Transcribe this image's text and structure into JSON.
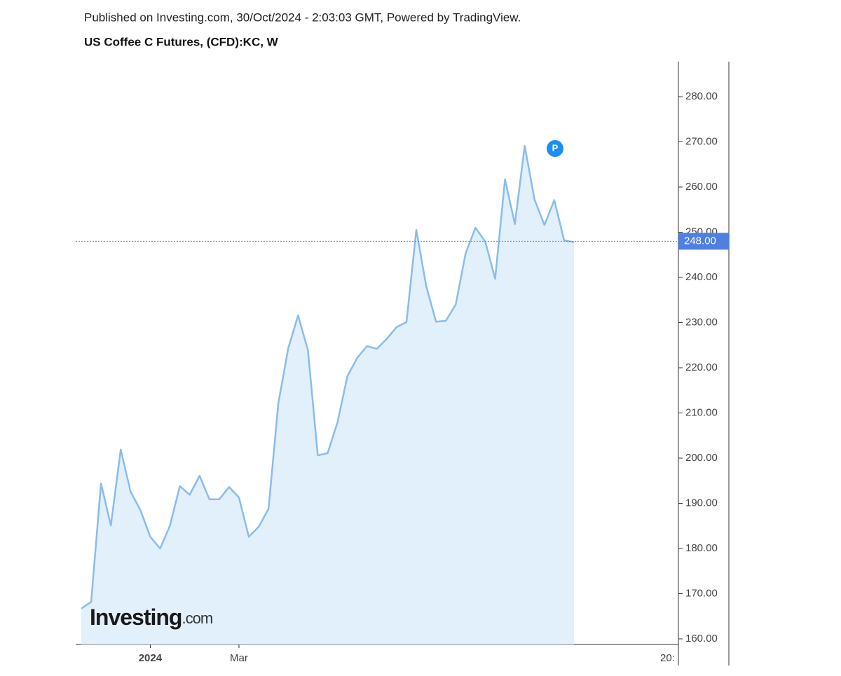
{
  "header": {
    "published": "Published on Investing.com, 30/Oct/2024 - 2:03:03 GMT, Powered by TradingView.",
    "logo_main": "Investing",
    "logo_suffix": ".com",
    "marker": "P"
  },
  "chart_data": {
    "type": "area",
    "title": "US Coffee C Futures, (CFD):KC, W",
    "categories": [
      null,
      null,
      null,
      null,
      null,
      null,
      null,
      "2024",
      null,
      null,
      null,
      null,
      null,
      null,
      null,
      null,
      "Mar",
      null,
      null,
      null,
      null,
      null,
      null,
      null,
      null,
      null,
      null,
      null,
      null,
      null,
      null,
      null,
      null,
      null,
      null,
      null,
      null,
      null,
      null,
      null,
      null,
      null,
      null,
      null,
      null,
      null,
      null,
      null,
      null,
      null,
      null
    ],
    "axis_end_label": "20:",
    "series": [
      {
        "name": "KC",
        "color": "#8bbcec",
        "fill": "#e1f0fa",
        "values": [
          166.7,
          168.2,
          194.4,
          185.1,
          201.9,
          192.6,
          188.5,
          182.6,
          180.0,
          185.1,
          193.8,
          191.9,
          196.1,
          190.9,
          190.9,
          193.6,
          191.3,
          182.6,
          184.8,
          188.8,
          212.2,
          224.3,
          231.6,
          223.9,
          200.6,
          201.1,
          207.9,
          218.1,
          222.2,
          224.8,
          224.2,
          226.4,
          229.0,
          230.1,
          250.5,
          238.1,
          230.2,
          230.4,
          234.0,
          245.3,
          251.0,
          247.9,
          239.7,
          261.7,
          251.8,
          269.1,
          257.2,
          251.6,
          257.1,
          248.2,
          247.8
        ]
      }
    ],
    "last_price": 248,
    "last_price_label": "248.00",
    "last_price_color": "#4f7fe0",
    "ylim": [
      158.76,
      287.75
    ],
    "yticks": [
      {
        "value": 160,
        "label": "160.00"
      },
      {
        "value": 170,
        "label": "170.00"
      },
      {
        "value": 180,
        "label": "180.00"
      },
      {
        "value": 190,
        "label": "190.00"
      },
      {
        "value": 200,
        "label": "200.00"
      },
      {
        "value": 210,
        "label": "210.00"
      },
      {
        "value": 220,
        "label": "220.00"
      },
      {
        "value": 230,
        "label": "230.00"
      },
      {
        "value": 240,
        "label": "240.00"
      },
      {
        "value": 250,
        "label": "250.00"
      },
      {
        "value": 260,
        "label": "260.00"
      },
      {
        "value": 270,
        "label": "270.00"
      },
      {
        "value": 280,
        "label": "280.00"
      }
    ]
  }
}
